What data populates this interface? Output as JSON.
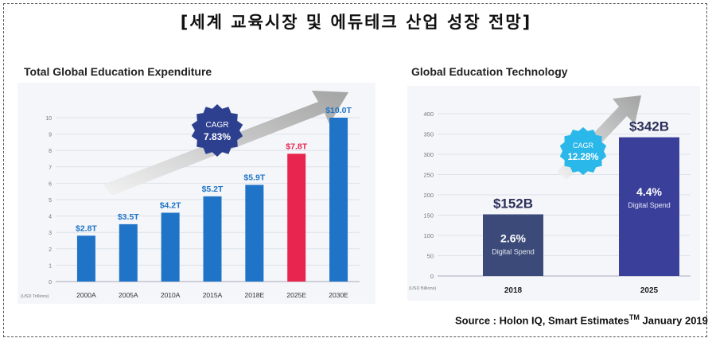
{
  "main_title": "[세계 교육시장 및 에듀테크 산업 성장 전망]",
  "source": {
    "prefix": "Source : Holon IQ, Smart Estimates",
    "tm": "TM",
    "suffix": " January 2019"
  },
  "chart_data": [
    {
      "type": "bar",
      "title": "Total Global Education Expenditure",
      "unit_label": "(USD Trillions)",
      "categories": [
        "2000A",
        "2005A",
        "2010A",
        "2015A",
        "2018E",
        "2025E",
        "2030E"
      ],
      "values": [
        2.8,
        3.5,
        4.2,
        5.2,
        5.9,
        7.8,
        10.0
      ],
      "value_labels": [
        "$2.8T",
        "$3.5T",
        "$4.2T",
        "$5.2T",
        "$5.9T",
        "$7.8T",
        "$10.0T"
      ],
      "ylim": [
        0,
        10
      ],
      "yticks": [
        0,
        1,
        2,
        3,
        4,
        5,
        6,
        7,
        8,
        9,
        10
      ],
      "grid": true,
      "bar_colors": [
        "#1f74c8",
        "#1f74c8",
        "#1f74c8",
        "#1f74c8",
        "#1f74c8",
        "#e8254f",
        "#1f74c8"
      ],
      "badge": {
        "line1": "CAGR",
        "line2": "7.83%",
        "color": "#2d3f8f"
      }
    },
    {
      "type": "bar",
      "title": "Global Education Technology",
      "unit_label": "(USD Billions)",
      "categories": [
        "2018",
        "2025"
      ],
      "values": [
        152,
        342
      ],
      "value_labels": [
        "$152B",
        "$342B"
      ],
      "inner_values": [
        "2.6%",
        "4.4%"
      ],
      "inner_sub": [
        "Digital Spend",
        "Digital Spend"
      ],
      "ylim": [
        0,
        400
      ],
      "yticks": [
        0,
        50,
        100,
        150,
        200,
        250,
        300,
        350,
        400
      ],
      "grid": true,
      "bar_colors": [
        "#3b4a78",
        "#3a3f9a"
      ],
      "badge": {
        "line1": "CAGR",
        "line2": "12.28%",
        "color": "#2ab7ea"
      }
    }
  ]
}
